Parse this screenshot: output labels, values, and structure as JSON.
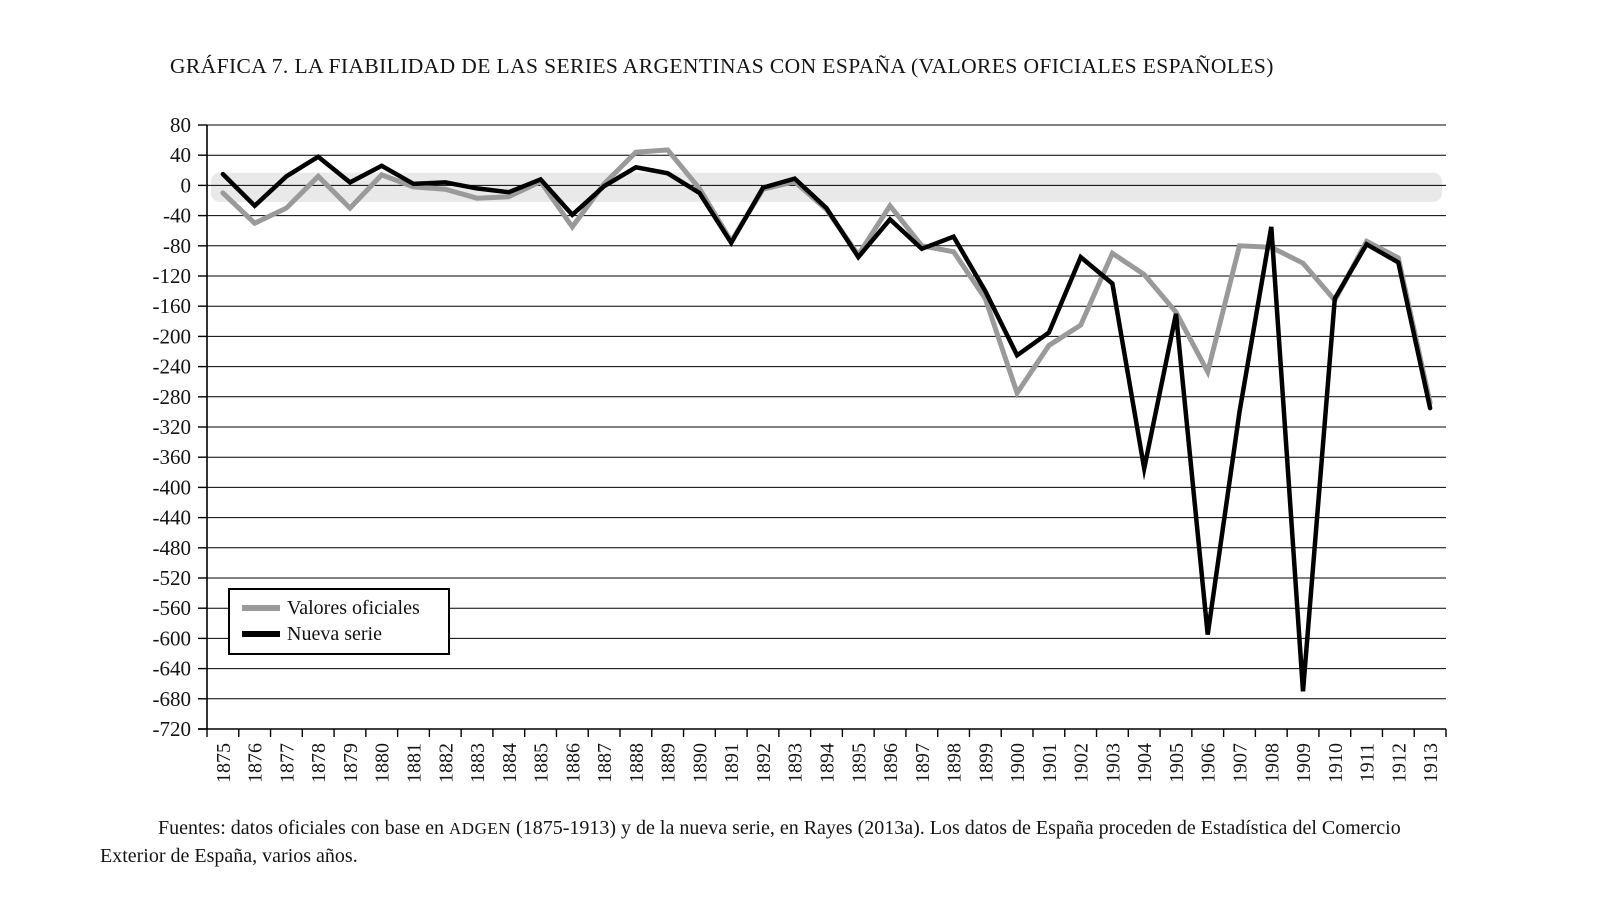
{
  "title": "GRÁFICA 7. LA FIABILIDAD DE LAS SERIES ARGENTINAS CON ESPAÑA (VALORES OFICIALES ESPAÑOLES)",
  "legend": {
    "items": [
      {
        "label": "Valores oficiales",
        "color": "#9a9a9a"
      },
      {
        "label": "Nueva serie",
        "color": "#000000"
      }
    ]
  },
  "footnote": {
    "part1": "Fuentes: datos oficiales con base en ",
    "adgen": "ADGEN",
    "part2": " (1875-1913) y de la nueva serie, en Rayes (2013a). Los datos de España proceden de Estadística del Comercio Exterior de España, varios años."
  },
  "chart_data": {
    "type": "line",
    "title": "GRÁFICA 7. LA FIABILIDAD DE LAS SERIES ARGENTINAS CON ESPAÑA (VALORES OFICIALES ESPAÑOLES)",
    "categories": [
      1875,
      1876,
      1877,
      1878,
      1879,
      1880,
      1881,
      1882,
      1883,
      1884,
      1885,
      1886,
      1887,
      1888,
      1889,
      1890,
      1891,
      1892,
      1893,
      1894,
      1895,
      1896,
      1897,
      1898,
      1899,
      1900,
      1901,
      1902,
      1903,
      1904,
      1905,
      1906,
      1907,
      1908,
      1909,
      1910,
      1911,
      1912,
      1913
    ],
    "series": [
      {
        "name": "Valores oficiales",
        "color": "#9a9a9a",
        "stroke_width": 5,
        "values": [
          -10,
          -50,
          -30,
          12,
          -30,
          14,
          -2,
          -5,
          -17,
          -15,
          5,
          -55,
          2,
          44,
          47,
          -4,
          -74,
          -5,
          5,
          -32,
          -92,
          -27,
          -80,
          -88,
          -150,
          -275,
          -212,
          -185,
          -90,
          -118,
          -168,
          -247,
          -80,
          -82,
          -103,
          -152,
          -74,
          -96,
          -288
        ]
      },
      {
        "name": "Nueva serie",
        "color": "#000000",
        "stroke_width": 4.5,
        "values": [
          15,
          -27,
          12,
          38,
          4,
          26,
          2,
          4,
          -4,
          -9,
          8,
          -39,
          -1,
          24,
          16,
          -10,
          -76,
          -3,
          9,
          -30,
          -95,
          -45,
          -84,
          -68,
          -140,
          -225,
          -195,
          -95,
          -130,
          -375,
          -170,
          -595,
          -300,
          -55,
          -670,
          -150,
          -78,
          -102,
          -295
        ]
      }
    ],
    "xlabel": "",
    "ylabel": "",
    "ylim": [
      -720,
      80
    ],
    "ytick_step": 40,
    "grid": "horizontal",
    "legend_position": "lower-left",
    "zero_band": {
      "from": -22,
      "to": 17,
      "color": "#e9e9e9"
    }
  }
}
